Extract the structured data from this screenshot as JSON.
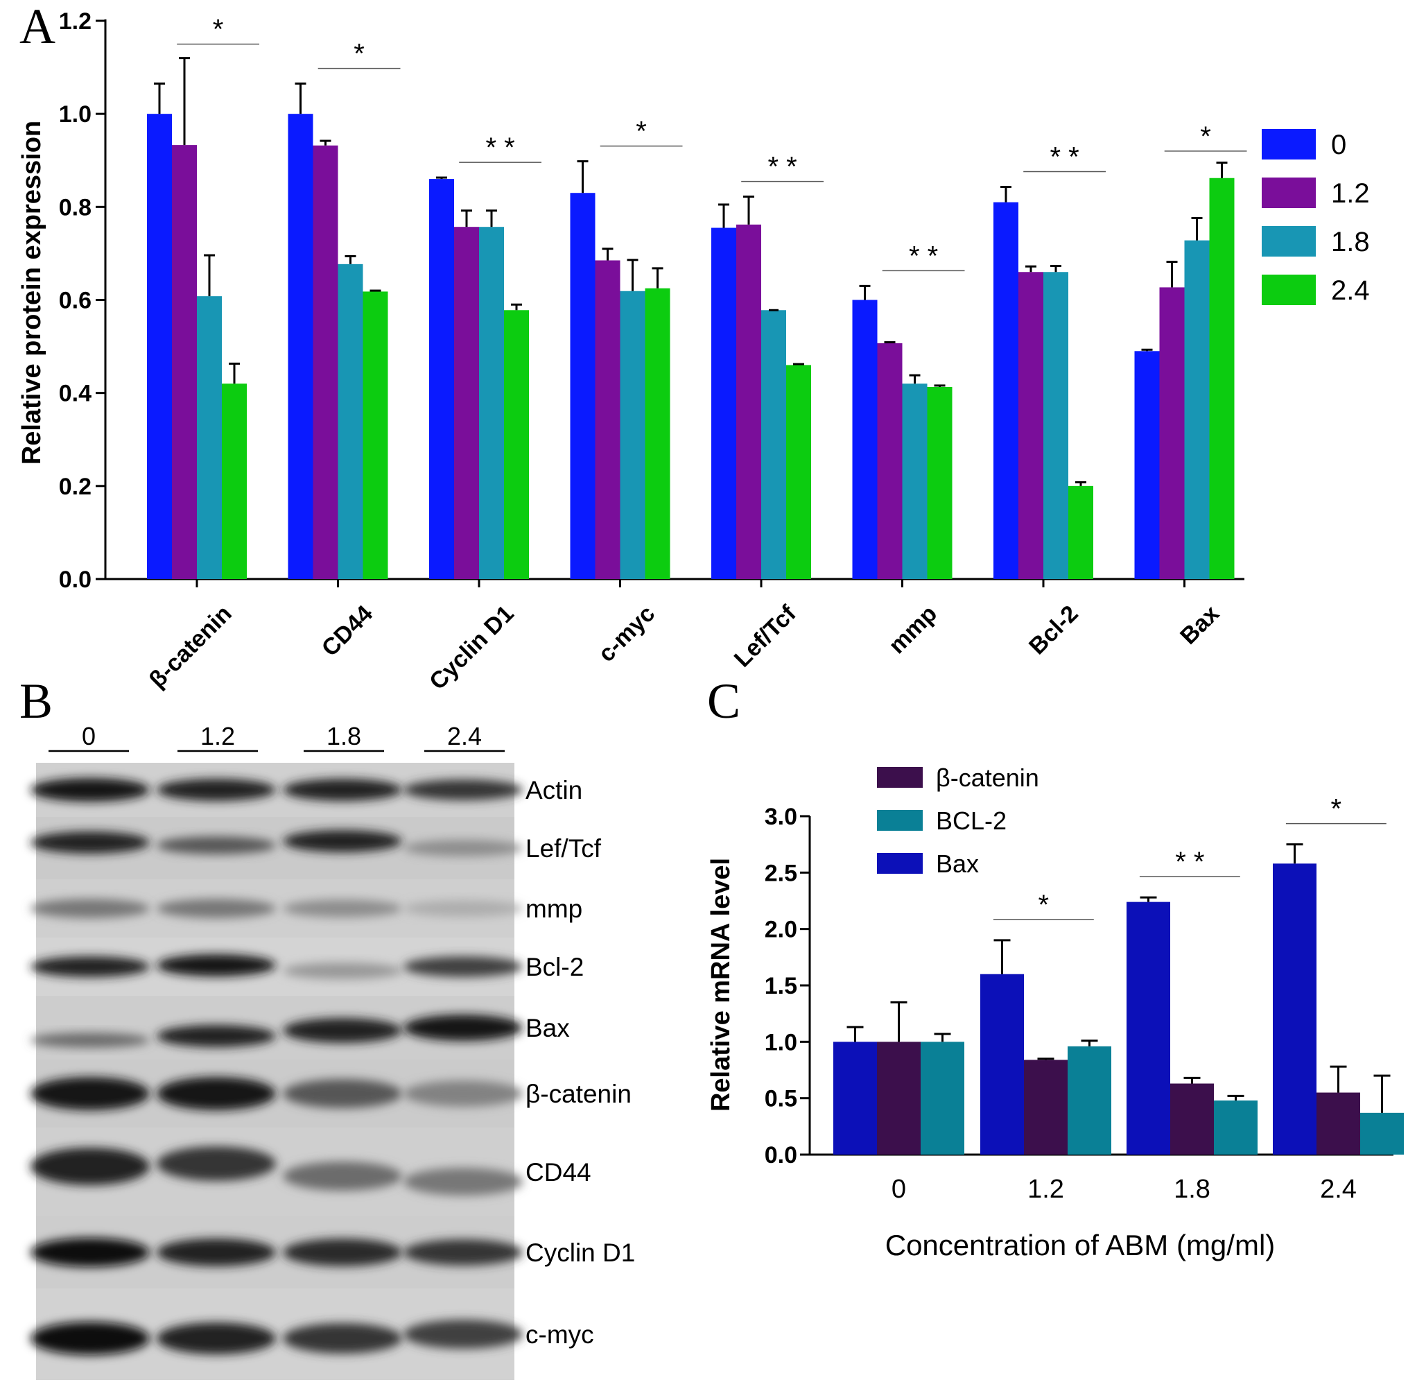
{
  "panels": {
    "a": "A",
    "b": "B",
    "c": "C"
  },
  "chart_data": [
    {
      "type": "bar",
      "ylabel": "Relative protein expression",
      "ylim": [
        0,
        1.2
      ],
      "yticks": [
        "0.0",
        "0.2",
        "0.4",
        "0.6",
        "0.8",
        "1.0",
        "1.2"
      ],
      "categories": [
        "β-catenin",
        "CD44",
        "Cyclin D1",
        "c-myc",
        "Lef/Tcf",
        "mmp",
        "Bcl-2",
        "Bax"
      ],
      "series": [
        {
          "name": "0",
          "color": "#0a1aff",
          "values": [
            1.0,
            1.0,
            0.86,
            0.83,
            0.755,
            0.6,
            0.81,
            0.49
          ],
          "errors": [
            0.065,
            0.065,
            0.003,
            0.068,
            0.05,
            0.03,
            0.033,
            0.003
          ]
        },
        {
          "name": "1.2",
          "color": "#7a0e9a",
          "values": [
            0.933,
            0.932,
            0.757,
            0.685,
            0.762,
            0.507,
            0.66,
            0.627
          ],
          "errors": [
            0.187,
            0.01,
            0.035,
            0.025,
            0.06,
            0.002,
            0.012,
            0.055
          ]
        },
        {
          "name": "1.8",
          "color": "#1896b4",
          "values": [
            0.608,
            0.677,
            0.757,
            0.619,
            0.578,
            0.42,
            0.66,
            0.728
          ],
          "errors": [
            0.088,
            0.017,
            0.035,
            0.067,
            0,
            0.018,
            0.013,
            0.048
          ]
        },
        {
          "name": "2.4",
          "color": "#0ccc10",
          "values": [
            0.42,
            0.618,
            0.578,
            0.625,
            0.46,
            0.413,
            0.2,
            0.862
          ],
          "errors": [
            0.043,
            0.002,
            0.012,
            0.043,
            0.002,
            0.003,
            0.008,
            0.033
          ]
        }
      ],
      "significance": [
        "*",
        "*",
        "* *",
        "*",
        "* *",
        "* *",
        "* *",
        "*"
      ],
      "legend": "right"
    },
    {
      "type": "bar",
      "ylabel": "Relative mRNA level",
      "xlabel": "Concentration of ABM (mg/ml)",
      "ylim": [
        0,
        3.0
      ],
      "yticks": [
        "0.0",
        "0.5",
        "1.0",
        "1.5",
        "2.0",
        "2.5",
        "3.0"
      ],
      "categories": [
        "0",
        "1.2",
        "1.8",
        "2.4"
      ],
      "series": [
        {
          "name": "Bax",
          "color": "#0c10b8",
          "values": [
            1.0,
            1.6,
            2.24,
            2.58
          ],
          "errors": [
            0.13,
            0.3,
            0.04,
            0.17
          ]
        },
        {
          "name": "β-catenin",
          "color": "#3c0f4c",
          "values": [
            1.0,
            0.84,
            0.63,
            0.55
          ],
          "errors": [
            0.35,
            0.01,
            0.05,
            0.23
          ]
        },
        {
          "name": "BCL-2",
          "color": "#0a8096",
          "values": [
            1.0,
            0.96,
            0.48,
            0.37
          ],
          "errors": [
            0.07,
            0.05,
            0.04,
            0.33
          ]
        }
      ],
      "legend_order": [
        "β-catenin",
        "BCL-2",
        "Bax"
      ],
      "significance": [
        "",
        "*",
        "* *",
        "*"
      ],
      "legend": "top-left"
    }
  ],
  "western_blot": {
    "lanes": [
      "0",
      "1.2",
      "1.8",
      "2.4"
    ],
    "proteins": [
      "Actin",
      "Lef/Tcf",
      "mmp",
      "Bcl-2",
      "Bax",
      "β-catenin",
      "CD44",
      "Cyclin D1",
      "c-myc"
    ]
  }
}
